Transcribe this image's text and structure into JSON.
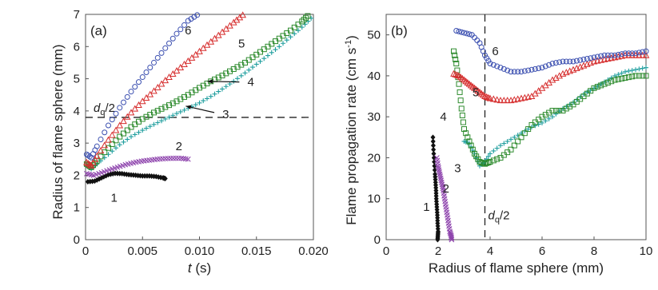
{
  "chart_data": [
    {
      "type": "scatter",
      "panel_label": "(a)",
      "xlabel_main": "t",
      "xlabel_unit": " (s)",
      "ylabel": "Radius of flame sphere (mm)",
      "xlim": [
        0,
        0.02
      ],
      "ylim": [
        0,
        7
      ],
      "x_ticks": [
        "0",
        "0.005",
        "0.010",
        "0.015",
        "0.020"
      ],
      "x_tick_values": [
        0,
        0.005,
        0.01,
        0.015,
        0.02
      ],
      "y_ticks": [
        "0",
        "1",
        "2",
        "3",
        "4",
        "5",
        "6",
        "7"
      ],
      "y_tick_values": [
        0,
        1,
        2,
        3,
        4,
        5,
        6,
        7
      ],
      "hline": {
        "y": 3.8,
        "label_main": "d",
        "label_sub": "q",
        "label_rest": "/2"
      },
      "series": [
        {
          "name": "1",
          "color": "#111111",
          "marker": "diamond",
          "x": [
            0.0002,
            0.0008,
            0.0014,
            0.002,
            0.0026,
            0.0032,
            0.0038,
            0.0044,
            0.005,
            0.0056,
            0.0062,
            0.0068,
            0.007
          ],
          "y": [
            1.8,
            1.82,
            1.92,
            2.02,
            2.06,
            2.05,
            2.02,
            2.0,
            1.98,
            1.98,
            1.96,
            1.92,
            1.9
          ]
        },
        {
          "name": "2",
          "color": "#8e44ad",
          "marker": "x",
          "x": [
            0.0001,
            0.0007,
            0.0014,
            0.0021,
            0.0028,
            0.0035,
            0.0042,
            0.0049,
            0.0056,
            0.0063,
            0.007,
            0.0077,
            0.0084,
            0.009
          ],
          "y": [
            2.05,
            2.0,
            2.08,
            2.17,
            2.25,
            2.33,
            2.39,
            2.44,
            2.47,
            2.5,
            2.52,
            2.53,
            2.53,
            2.5
          ]
        },
        {
          "name": "3",
          "color": "#1f9e9e",
          "marker": "plus",
          "x": [
            0.0001,
            0.0005,
            0.001,
            0.002,
            0.003,
            0.004,
            0.005,
            0.006,
            0.007,
            0.008,
            0.009,
            0.01,
            0.011,
            0.012,
            0.013,
            0.014,
            0.015,
            0.016,
            0.017,
            0.018,
            0.019,
            0.0198
          ],
          "y": [
            2.3,
            2.2,
            2.35,
            2.65,
            2.95,
            3.2,
            3.4,
            3.58,
            3.75,
            3.92,
            4.08,
            4.25,
            4.45,
            4.68,
            4.92,
            5.18,
            5.45,
            5.72,
            6.0,
            6.3,
            6.6,
            6.88
          ]
        },
        {
          "name": "4",
          "color": "#2e8b2e",
          "marker": "square",
          "x": [
            0.0001,
            0.0005,
            0.001,
            0.002,
            0.003,
            0.004,
            0.005,
            0.006,
            0.007,
            0.008,
            0.009,
            0.01,
            0.011,
            0.012,
            0.013,
            0.014,
            0.015,
            0.016,
            0.017,
            0.018,
            0.019,
            0.0195
          ],
          "y": [
            2.35,
            2.25,
            2.45,
            2.85,
            3.2,
            3.5,
            3.75,
            3.95,
            4.12,
            4.3,
            4.5,
            4.72,
            4.92,
            5.1,
            5.3,
            5.5,
            5.75,
            6.0,
            6.25,
            6.5,
            6.78,
            6.95
          ]
        },
        {
          "name": "5",
          "color": "#d62f2f",
          "marker": "triangle",
          "x": [
            0.0001,
            0.0005,
            0.001,
            0.002,
            0.003,
            0.004,
            0.005,
            0.006,
            0.007,
            0.008,
            0.009,
            0.01,
            0.011,
            0.012,
            0.013,
            0.0138
          ],
          "y": [
            2.4,
            2.3,
            2.6,
            3.1,
            3.55,
            3.95,
            4.3,
            4.62,
            4.95,
            5.25,
            5.55,
            5.85,
            6.15,
            6.45,
            6.75,
            6.98
          ]
        },
        {
          "name": "6",
          "color": "#3b4fb0",
          "marker": "circle",
          "x": [
            0.0001,
            0.0005,
            0.001,
            0.002,
            0.003,
            0.004,
            0.005,
            0.006,
            0.007,
            0.008,
            0.009,
            0.0098
          ],
          "y": [
            2.65,
            2.55,
            2.9,
            3.55,
            4.1,
            4.6,
            5.05,
            5.5,
            5.95,
            6.4,
            6.8,
            6.98
          ]
        }
      ],
      "curve_labels": [
        {
          "text": "1",
          "x": 0.0025,
          "y": 1.3
        },
        {
          "text": "2",
          "x": 0.0082,
          "y": 2.9
        },
        {
          "text": "3",
          "x": 0.0123,
          "y": 3.9
        },
        {
          "text": "4",
          "x": 0.0145,
          "y": 4.9
        },
        {
          "text": "5",
          "x": 0.0137,
          "y": 6.1
        },
        {
          "text": "6",
          "x": 0.009,
          "y": 6.5
        }
      ],
      "arrows": [
        {
          "from": [
            0.0113,
            3.95
          ],
          "to": [
            0.0088,
            4.15
          ]
        },
        {
          "from": [
            0.0135,
            4.9
          ],
          "to": [
            0.0107,
            4.92
          ]
        }
      ]
    },
    {
      "type": "scatter",
      "panel_label": "(b)",
      "xlabel": "Radius of flame sphere (mm)",
      "ylabel_main": "Flame propagation rate (cm s",
      "ylabel_sup": "-1",
      "ylabel_close": ")",
      "xlim": [
        0,
        10
      ],
      "ylim": [
        0,
        55
      ],
      "x_ticks": [
        "0",
        "2",
        "4",
        "6",
        "8",
        "10"
      ],
      "x_tick_values": [
        0,
        2,
        4,
        6,
        8,
        10
      ],
      "y_ticks": [
        "0",
        "10",
        "20",
        "30",
        "40",
        "50"
      ],
      "y_tick_values": [
        0,
        10,
        20,
        30,
        40,
        50
      ],
      "vline": {
        "x": 3.8,
        "label_main": "d",
        "label_sub": "q",
        "label_rest": "/2"
      },
      "series": [
        {
          "name": "1",
          "color": "#111111",
          "marker": "diamond",
          "x": [
            1.8,
            1.82,
            1.85,
            1.88,
            1.9,
            1.92,
            1.93,
            1.95,
            1.97,
            1.98,
            2.0,
            1.99,
            1.98
          ],
          "y": [
            25,
            22,
            19,
            16,
            14,
            12,
            10,
            8,
            6,
            4,
            2,
            1,
            0
          ]
        },
        {
          "name": "2",
          "color": "#8e44ad",
          "marker": "x",
          "x": [
            1.95,
            2.0,
            2.05,
            2.1,
            2.15,
            2.2,
            2.25,
            2.3,
            2.35,
            2.4,
            2.45,
            2.5,
            2.52
          ],
          "y": [
            20,
            18,
            16.5,
            15,
            13.5,
            12,
            10,
            8,
            6,
            4,
            2,
            1,
            0
          ]
        },
        {
          "name": "3",
          "color": "#1f9e9e",
          "marker": "plus",
          "x": [
            3.0,
            3.2,
            3.4,
            3.6,
            3.8,
            4.0,
            4.4,
            4.8,
            5.2,
            5.6,
            6.0,
            6.4,
            6.8,
            7.2,
            7.6,
            8.0,
            8.4,
            8.8,
            9.2,
            9.6,
            10.0
          ],
          "y": [
            24,
            23.5,
            21,
            18,
            19,
            21,
            23,
            24.5,
            26,
            27.5,
            28.5,
            30,
            32,
            33.5,
            35.5,
            37,
            38.5,
            40,
            41,
            41.5,
            42
          ]
        },
        {
          "name": "4",
          "color": "#2e8b2e",
          "marker": "square",
          "x": [
            2.6,
            2.7,
            2.8,
            2.9,
            3.0,
            3.2,
            3.4,
            3.6,
            3.8,
            4.0,
            4.4,
            4.8,
            5.2,
            5.6,
            6.0,
            6.4,
            6.8,
            7.2,
            7.6,
            8.0,
            8.4,
            8.8,
            9.2,
            9.6,
            10.0
          ],
          "y": [
            46,
            43,
            38,
            32,
            27,
            24,
            21,
            19,
            18.5,
            19,
            20,
            22,
            25,
            28,
            30,
            31.5,
            31.5,
            33,
            35,
            37,
            38,
            39,
            39.5,
            40,
            40
          ]
        },
        {
          "name": "5",
          "color": "#d62f2f",
          "marker": "triangle",
          "x": [
            2.6,
            2.8,
            3.0,
            3.2,
            3.4,
            3.6,
            3.8,
            4.0,
            4.4,
            4.8,
            5.2,
            5.6,
            6.0,
            6.4,
            6.8,
            7.2,
            7.6,
            8.0,
            8.4,
            8.8,
            9.2,
            9.6,
            10.0
          ],
          "y": [
            40.5,
            40,
            39,
            38,
            37,
            36,
            35,
            34.5,
            34,
            34,
            34.5,
            35,
            37,
            39,
            40.5,
            41.5,
            42.5,
            43.5,
            44,
            44.5,
            45,
            45,
            45
          ]
        },
        {
          "name": "6",
          "color": "#3b4fb0",
          "marker": "circle",
          "x": [
            2.7,
            3.0,
            3.3,
            3.6,
            3.8,
            4.0,
            4.4,
            4.8,
            5.2,
            5.6,
            6.0,
            6.4,
            6.8,
            7.2,
            7.6,
            8.0,
            8.4,
            8.8,
            9.2,
            9.6,
            10.0
          ],
          "y": [
            51,
            50.5,
            50,
            48,
            45,
            43,
            42,
            41,
            41,
            41.5,
            42,
            43,
            43.5,
            43.5,
            44,
            44.5,
            45,
            45,
            45.5,
            45.5,
            46
          ]
        }
      ],
      "curve_labels": [
        {
          "text": "1",
          "x": 1.55,
          "y": 8
        },
        {
          "text": "2",
          "x": 2.3,
          "y": 12.5
        },
        {
          "text": "3",
          "x": 2.75,
          "y": 17.5
        },
        {
          "text": "4",
          "x": 2.2,
          "y": 30
        },
        {
          "text": "5",
          "x": 3.45,
          "y": 36
        },
        {
          "text": "6",
          "x": 4.2,
          "y": 46
        }
      ]
    }
  ]
}
